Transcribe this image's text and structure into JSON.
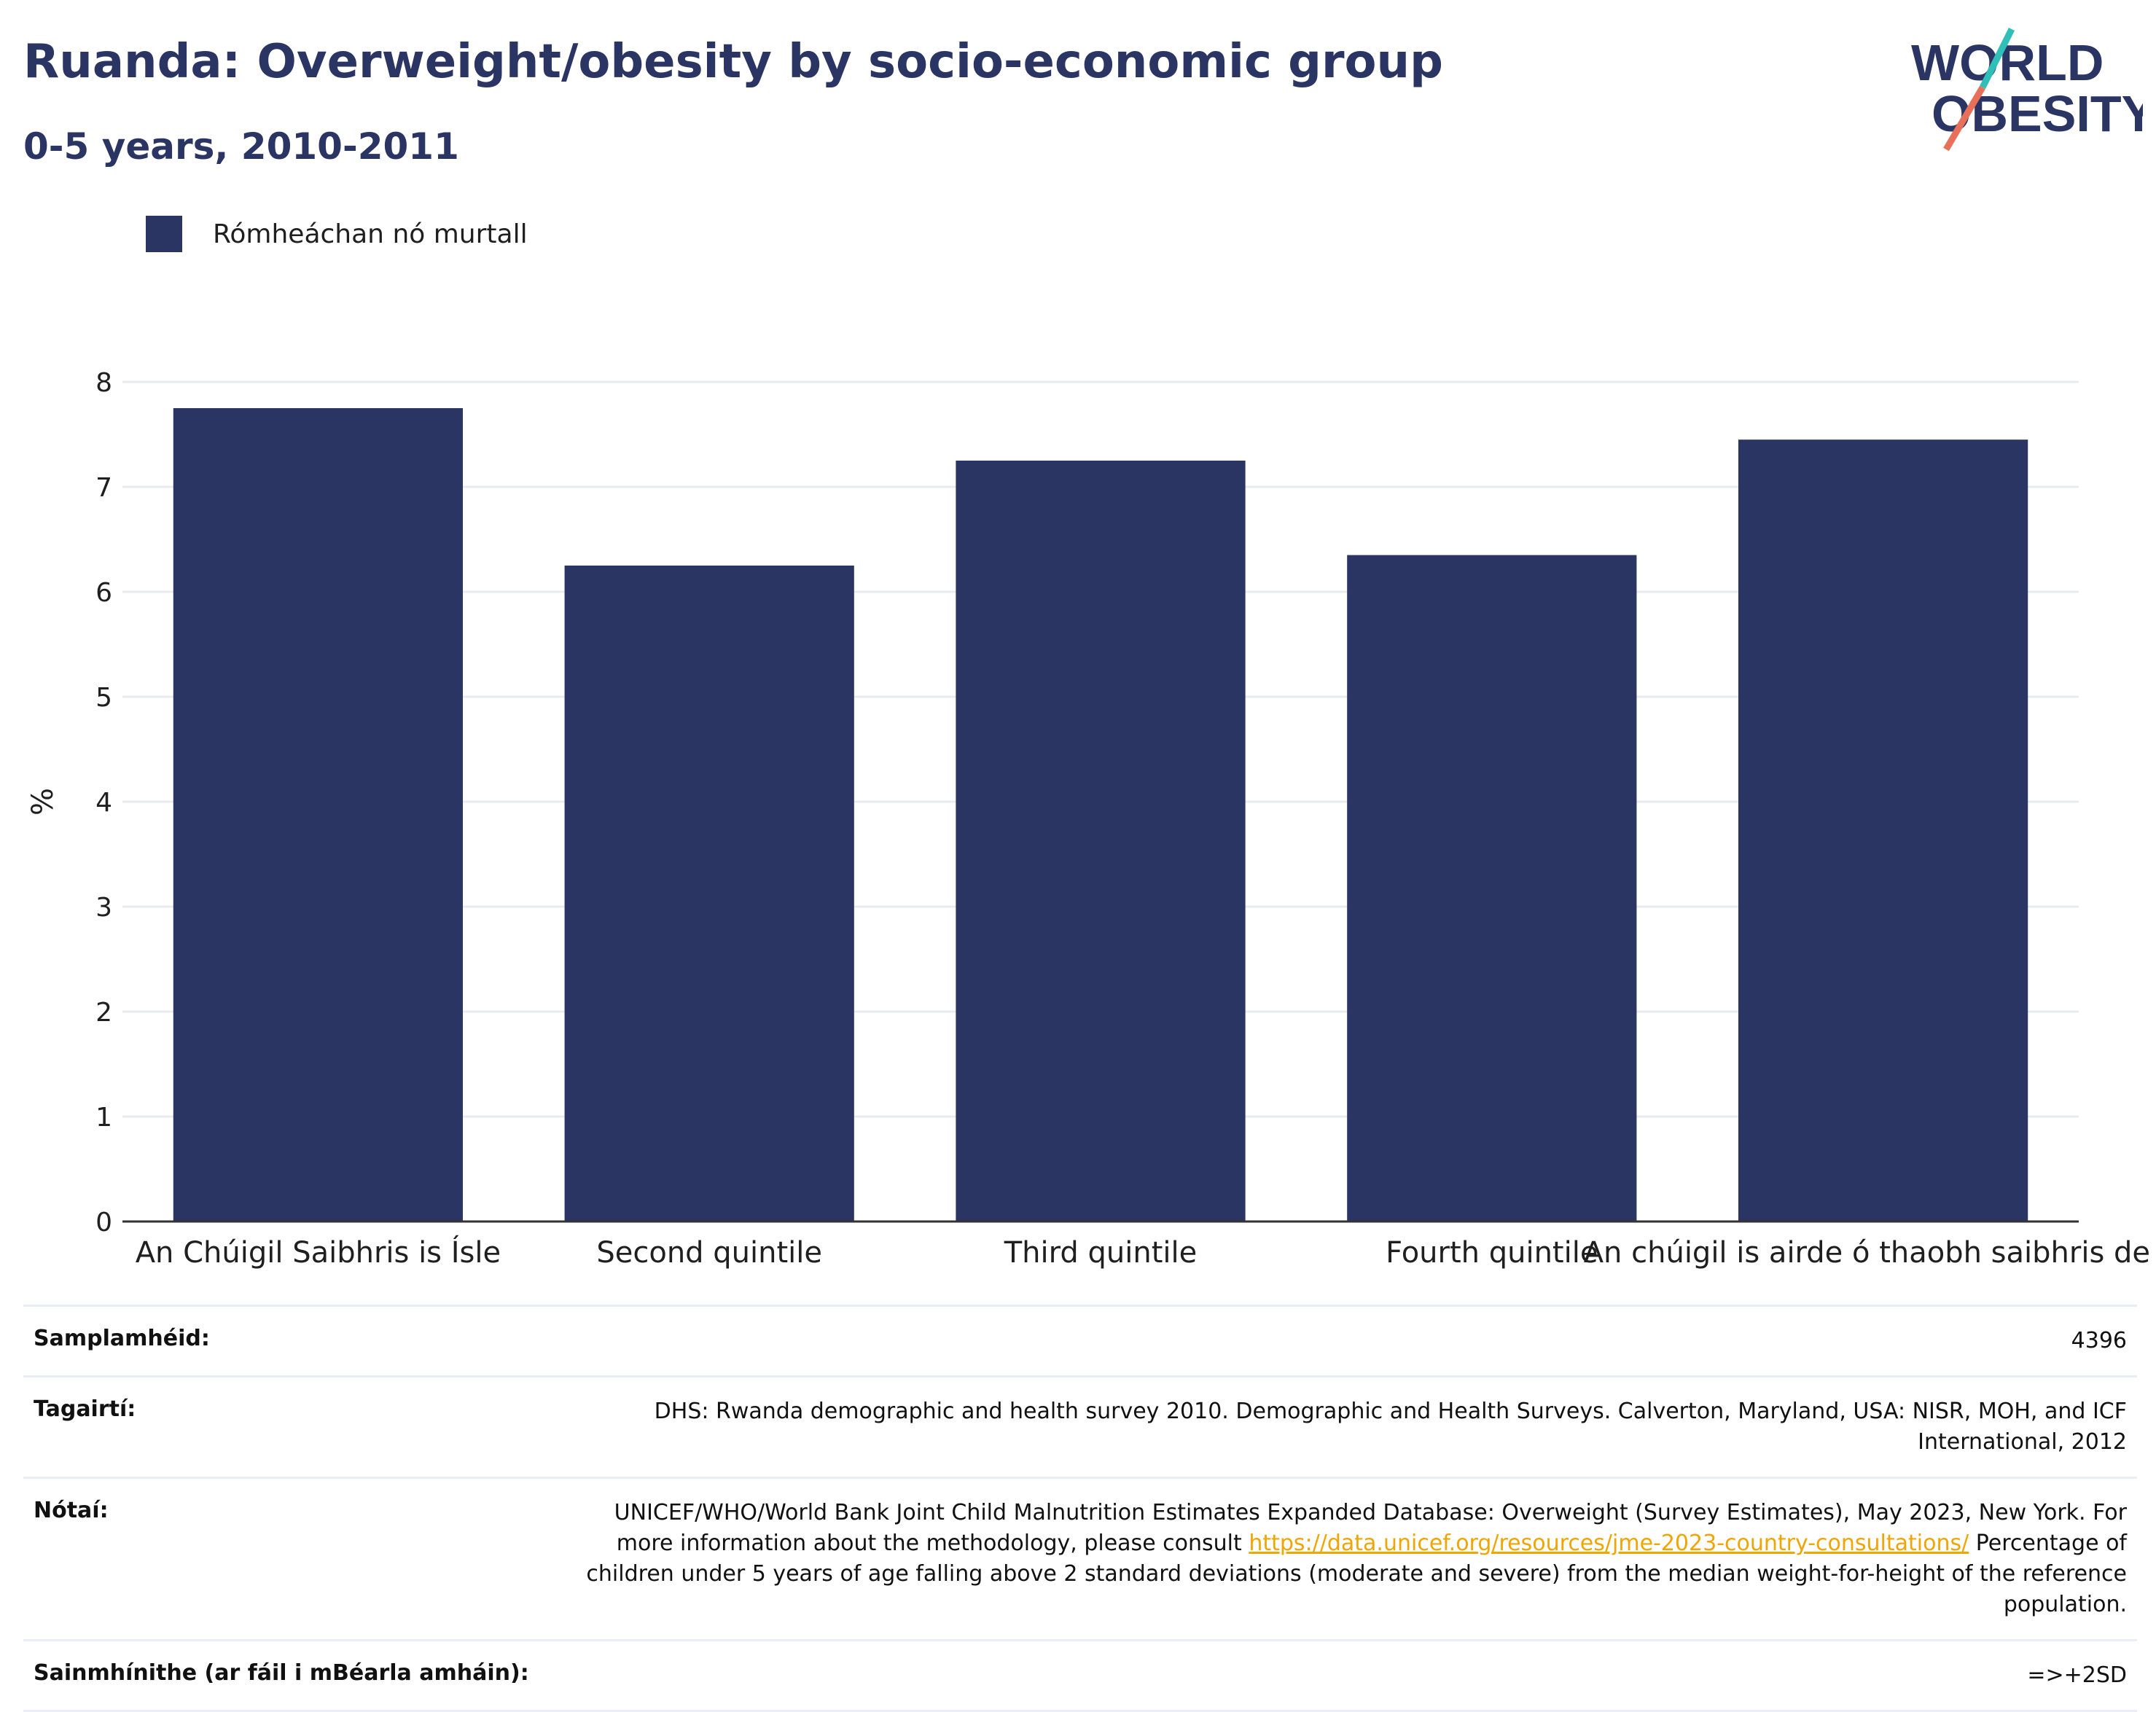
{
  "header": {
    "title": "Ruanda: Overweight/obesity by socio-economic group",
    "subtitle": "0-5 years, 2010-2011"
  },
  "logo": {
    "line1": "WORLD",
    "line2": "OBESITY",
    "colors": {
      "text": "#2b3563",
      "slash_top": "#2fbfb8",
      "slash_bottom": "#e8705a"
    }
  },
  "legend": {
    "label": "Rómheáchan nó murtall",
    "color": "#2b3563"
  },
  "chart_data": {
    "type": "bar",
    "ylabel": "%",
    "xlabel": "",
    "ylim": [
      0,
      8
    ],
    "yticks": [
      0,
      1,
      2,
      3,
      4,
      5,
      6,
      7,
      8
    ],
    "grid": true,
    "legend_position": "top-left",
    "bar_color": "#2b3563",
    "categories": [
      "An Chúigil Saibhris is Ísle",
      "Second quintile",
      "Third quintile",
      "Fourth quintile",
      "An chúigil is airde ó thaobh saibhris de"
    ],
    "series": [
      {
        "name": "Rómheáchan nó murtall",
        "values": [
          7.75,
          6.25,
          7.25,
          6.35,
          7.45
        ]
      }
    ]
  },
  "info": {
    "sample_size_label": "Samplamhéid:",
    "sample_size_value": "4396",
    "references_label": "Tagairtí:",
    "references_value": "DHS: Rwanda demographic and health survey 2010. Demographic and Health Surveys. Calverton, Maryland, USA: NISR, MOH, and ICF International, 2012",
    "notes_label": "Nótaí:",
    "notes_text_1": "UNICEF/WHO/World Bank Joint Child Malnutrition Estimates Expanded Database: Overweight (Survey Estimates), May 2023, New York. For more information about the methodology, please consult ",
    "notes_link": "https://data.unicef.org/resources/jme-2023-country-consultations/",
    "notes_text_2": " Percentage of children under 5 years of age falling above 2 standard deviations (moderate and severe) from the median weight-for-height of the reference population.",
    "definitions_label": "Sainmhínithe (ar fáil i mBéarla amháin):",
    "definitions_value": "=>+2SD"
  }
}
